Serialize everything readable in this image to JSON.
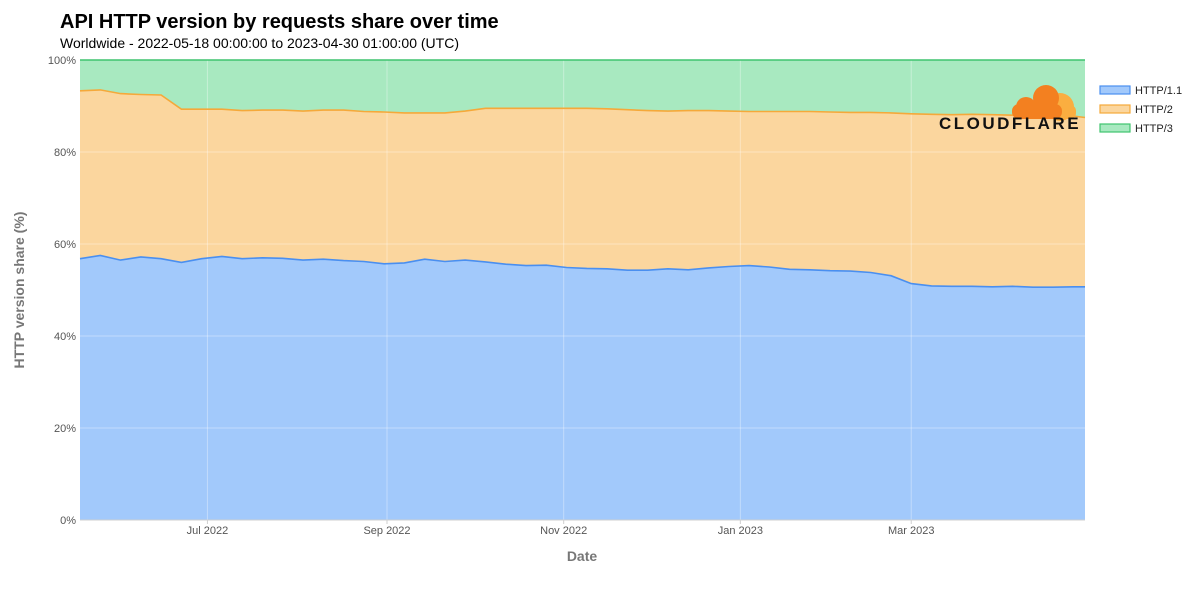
{
  "chart_data": {
    "type": "area",
    "stacked": true,
    "title": "API HTTP version by requests share over time",
    "subtitle": "Worldwide - 2022-05-18 00:00:00 to 2023-04-30 01:00:00 (UTC)",
    "xlabel": "Date",
    "ylabel": "HTTP version share (%)",
    "xlim": [
      "2022-05-18",
      "2023-04-30"
    ],
    "ylim": [
      0,
      100
    ],
    "x_ticks": [
      {
        "date": "2022-07-01",
        "label": "Jul 2022"
      },
      {
        "date": "2022-09-01",
        "label": "Sep 2022"
      },
      {
        "date": "2022-11-01",
        "label": "Nov 2022"
      },
      {
        "date": "2023-01-01",
        "label": "Jan 2023"
      },
      {
        "date": "2023-03-01",
        "label": "Mar 2023"
      }
    ],
    "y_ticks": [
      {
        "value": 0,
        "label": "0%"
      },
      {
        "value": 20,
        "label": "20%"
      },
      {
        "value": 40,
        "label": "40%"
      },
      {
        "value": 60,
        "label": "60%"
      },
      {
        "value": 80,
        "label": "80%"
      },
      {
        "value": 100,
        "label": "100%"
      }
    ],
    "grid": true,
    "legend_position": "right",
    "x": [
      "2022-05-18",
      "2022-05-25",
      "2022-06-01",
      "2022-06-08",
      "2022-06-15",
      "2022-06-22",
      "2022-06-29",
      "2022-07-06",
      "2022-07-13",
      "2022-07-20",
      "2022-07-27",
      "2022-08-03",
      "2022-08-10",
      "2022-08-17",
      "2022-08-24",
      "2022-08-31",
      "2022-09-07",
      "2022-09-14",
      "2022-09-21",
      "2022-09-28",
      "2022-10-05",
      "2022-10-12",
      "2022-10-19",
      "2022-10-26",
      "2022-11-02",
      "2022-11-09",
      "2022-11-16",
      "2022-11-23",
      "2022-11-30",
      "2022-12-07",
      "2022-12-14",
      "2022-12-21",
      "2022-12-28",
      "2023-01-04",
      "2023-01-11",
      "2023-01-18",
      "2023-01-25",
      "2023-02-01",
      "2023-02-08",
      "2023-02-15",
      "2023-02-22",
      "2023-03-01",
      "2023-03-08",
      "2023-03-15",
      "2023-03-22",
      "2023-03-29",
      "2023-04-05",
      "2023-04-12",
      "2023-04-19",
      "2023-04-26",
      "2023-04-30"
    ],
    "series": [
      {
        "name": "HTTP/1.1",
        "color": "#4a8ff0",
        "fill": "#a2c9fb",
        "values": [
          56.8,
          57.5,
          56.5,
          57.2,
          56.8,
          56.0,
          56.8,
          57.3,
          56.8,
          57.0,
          56.9,
          56.5,
          56.7,
          56.4,
          56.2,
          55.7,
          55.9,
          56.7,
          56.2,
          56.5,
          56.1,
          55.6,
          55.3,
          55.4,
          54.9,
          54.7,
          54.6,
          54.3,
          54.3,
          54.6,
          54.4,
          54.8,
          55.1,
          55.3,
          55.0,
          54.5,
          54.4,
          54.2,
          54.1,
          53.8,
          53.1,
          51.4,
          50.9,
          50.8,
          50.8,
          50.7,
          50.8,
          50.6,
          50.6,
          50.7,
          50.7
        ]
      },
      {
        "name": "HTTP/2",
        "color": "#f5a93a",
        "fill": "#fbd69e",
        "values": [
          36.5,
          36.0,
          36.2,
          35.3,
          35.6,
          33.3,
          32.5,
          32.0,
          32.2,
          32.1,
          32.2,
          32.4,
          32.4,
          32.7,
          32.6,
          33.0,
          32.6,
          31.8,
          32.3,
          32.4,
          33.4,
          33.9,
          34.2,
          34.1,
          34.6,
          34.8,
          34.8,
          34.9,
          34.7,
          34.3,
          34.6,
          34.2,
          33.8,
          33.5,
          33.8,
          34.3,
          34.4,
          34.5,
          34.5,
          34.8,
          35.4,
          36.9,
          37.3,
          37.3,
          37.4,
          37.4,
          37.2,
          37.4,
          37.3,
          37.1,
          36.8
        ]
      },
      {
        "name": "HTTP/3",
        "color": "#3fc46f",
        "fill": "#a8e9c0",
        "values": [
          6.7,
          6.5,
          7.3,
          7.5,
          7.6,
          10.7,
          10.7,
          10.7,
          11.0,
          10.9,
          10.9,
          11.1,
          10.9,
          10.9,
          11.2,
          11.3,
          11.5,
          11.5,
          11.5,
          11.1,
          10.5,
          10.5,
          10.5,
          10.5,
          10.5,
          10.5,
          10.6,
          10.8,
          11.0,
          11.1,
          11.0,
          11.0,
          11.1,
          11.2,
          11.2,
          11.2,
          11.2,
          11.3,
          11.4,
          11.4,
          11.5,
          11.7,
          11.8,
          11.9,
          11.8,
          11.9,
          12.0,
          12.0,
          12.1,
          12.2,
          12.5
        ]
      }
    ]
  },
  "logo": {
    "text": "CLOUDFLARE",
    "icon": "cloud-icon",
    "colors": [
      "#f38020",
      "#faae40"
    ]
  }
}
